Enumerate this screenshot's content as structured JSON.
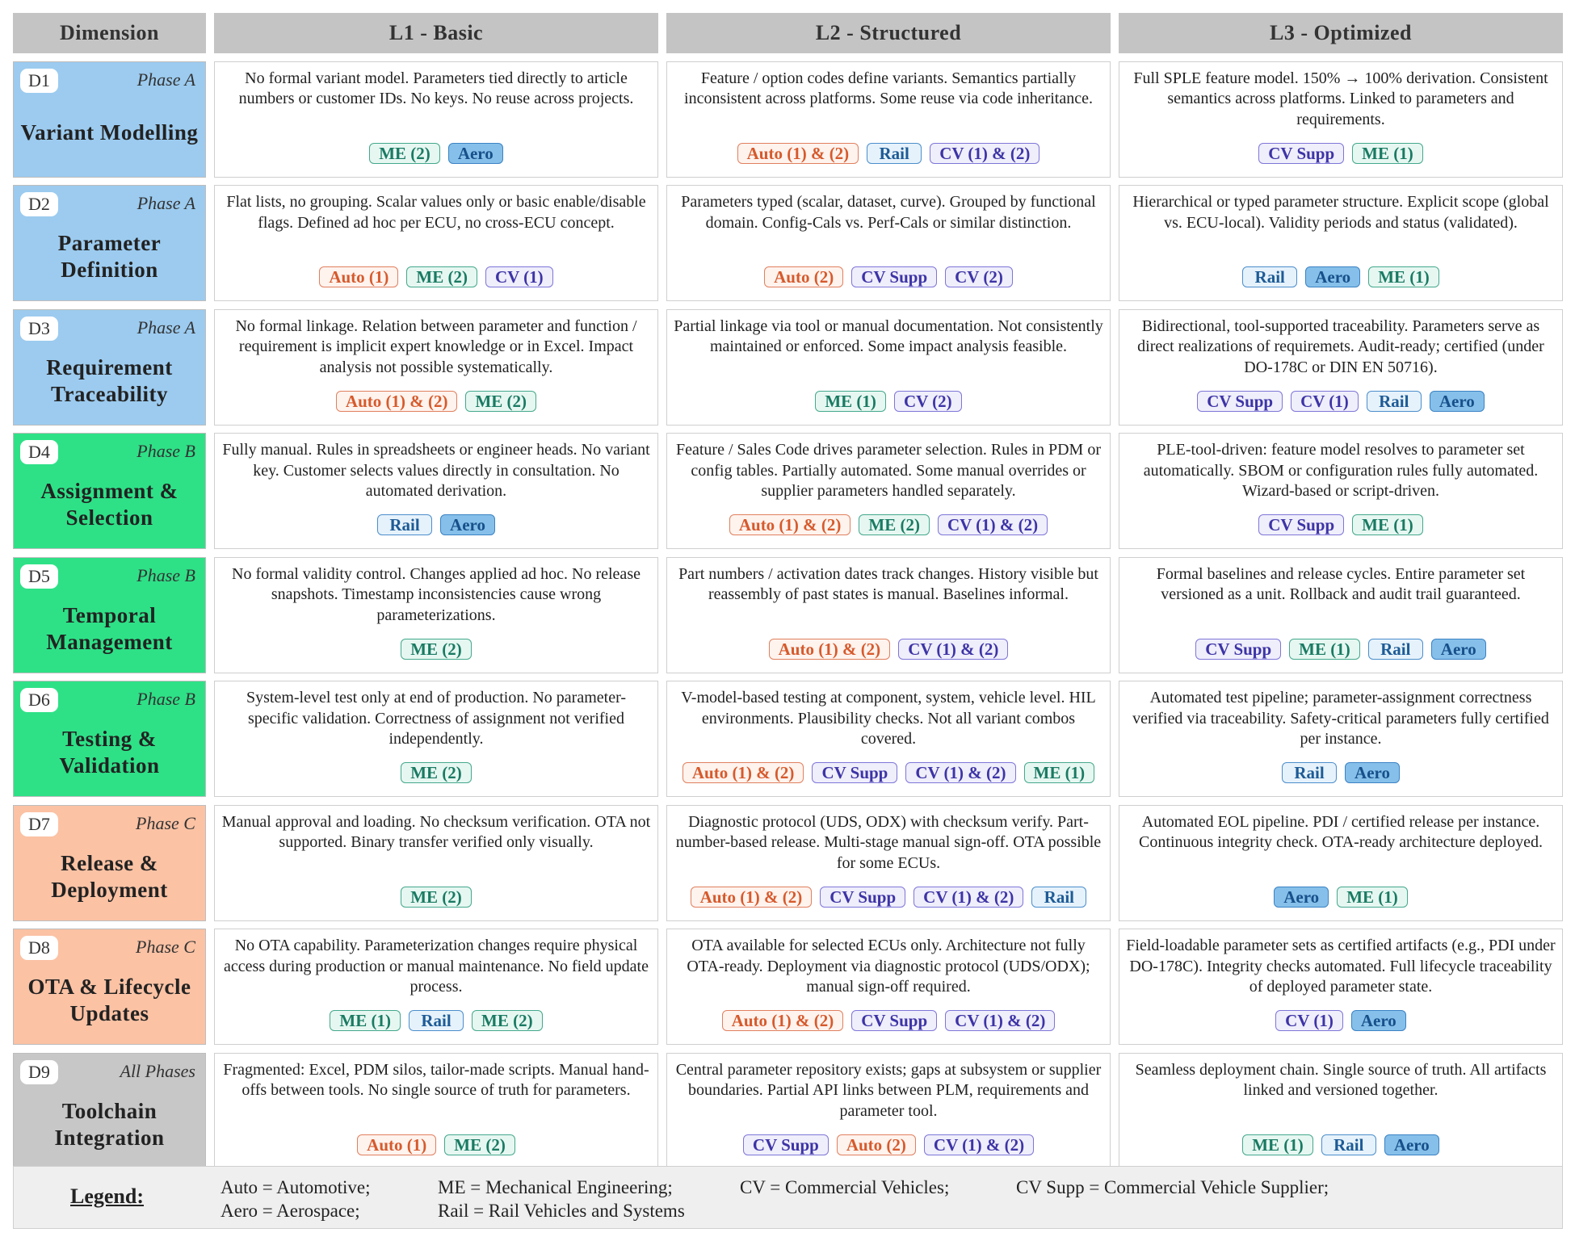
{
  "headers": [
    "Dimension",
    "L1 - Basic",
    "L2 - Structured",
    "L3 - Optimized"
  ],
  "rows": [
    {
      "id": "D1",
      "phase": "Phase A",
      "phase_class": "pa",
      "name": "Variant Modelling",
      "cells": [
        {
          "text": "No formal variant model. Parameters tied directly to article numbers or customer IDs. No keys. No reuse across projects.",
          "tags": [
            {
              "label": "ME (2)",
              "kind": "me"
            },
            {
              "label": "Aero",
              "kind": "aero"
            }
          ]
        },
        {
          "text": "Feature / option codes define variants. Semantics partially inconsistent across platforms. Some reuse via code inheritance.",
          "tags": [
            {
              "label": "Auto (1) & (2)",
              "kind": "auto"
            },
            {
              "label": "Rail",
              "kind": "rail"
            },
            {
              "label": "CV (1) & (2)",
              "kind": "cv"
            }
          ]
        },
        {
          "text": "Full SPLE feature model. 150% → 100% derivation. Consistent semantics across platforms. Linked to parameters and requirements.",
          "tags": [
            {
              "label": "CV Supp",
              "kind": "cvs"
            },
            {
              "label": "ME (1)",
              "kind": "me"
            }
          ]
        }
      ]
    },
    {
      "id": "D2",
      "phase": "Phase A",
      "phase_class": "pa",
      "name": "Parameter Definition",
      "cells": [
        {
          "text": "Flat lists, no grouping. Scalar values only or basic enable/disable flags. Defined ad hoc per ECU, no cross-ECU concept.",
          "tags": [
            {
              "label": "Auto (1)",
              "kind": "auto"
            },
            {
              "label": "ME (2)",
              "kind": "me"
            },
            {
              "label": "CV (1)",
              "kind": "cv"
            }
          ]
        },
        {
          "text": "Parameters typed (scalar, dataset, curve). Grouped by functional domain. Config-Cals vs. Perf-Cals or similar distinction.",
          "tags": [
            {
              "label": "Auto (2)",
              "kind": "auto"
            },
            {
              "label": "CV Supp",
              "kind": "cvs"
            },
            {
              "label": "CV (2)",
              "kind": "cv"
            }
          ]
        },
        {
          "text": "Hierarchical or typed parameter structure. Explicit scope (global vs. ECU-local). Validity periods and status (validated).",
          "tags": [
            {
              "label": "Rail",
              "kind": "rail"
            },
            {
              "label": "Aero",
              "kind": "aero"
            },
            {
              "label": "ME (1)",
              "kind": "me"
            }
          ]
        }
      ]
    },
    {
      "id": "D3",
      "phase": "Phase A",
      "phase_class": "pa",
      "name": "Requirement Traceability",
      "cells": [
        {
          "text": "No formal linkage. Relation between parameter and function / requirement is implicit expert knowledge or in Excel. Impact analysis not possible systematically.",
          "tags": [
            {
              "label": "Auto (1) & (2)",
              "kind": "auto"
            },
            {
              "label": "ME (2)",
              "kind": "me"
            }
          ]
        },
        {
          "text": "Partial linkage via tool or manual documentation. Not consistently maintained or enforced. Some impact analysis feasible.",
          "tags": [
            {
              "label": "ME (1)",
              "kind": "me"
            },
            {
              "label": "CV (2)",
              "kind": "cv"
            }
          ]
        },
        {
          "text": "Bidirectional, tool-supported traceability. Parameters serve as direct realizations of requiremets. Audit-ready; certified (under DO-178C or DIN EN 50716).",
          "tags": [
            {
              "label": "CV Supp",
              "kind": "cvs"
            },
            {
              "label": "CV (1)",
              "kind": "cv"
            },
            {
              "label": "Rail",
              "kind": "rail"
            },
            {
              "label": "Aero",
              "kind": "aero"
            }
          ]
        }
      ]
    },
    {
      "id": "D4",
      "phase": "Phase B",
      "phase_class": "pb",
      "name": "Assignment & Selection",
      "cells": [
        {
          "text": "Fully manual. Rules in spreadsheets or engineer heads. No variant key. Customer selects values directly in consultation. No automated derivation.",
          "tags": [
            {
              "label": "Rail",
              "kind": "rail"
            },
            {
              "label": "Aero",
              "kind": "aero"
            }
          ]
        },
        {
          "text": "Feature / Sales Code drives parameter selection. Rules in PDM or config tables. Partially automated. Some manual overrides or supplier parameters handled separately.",
          "tags": [
            {
              "label": "Auto (1) & (2)",
              "kind": "auto"
            },
            {
              "label": "ME (2)",
              "kind": "me"
            },
            {
              "label": "CV (1) & (2)",
              "kind": "cv"
            }
          ]
        },
        {
          "text": "PLE-tool-driven: feature model resolves to parameter set automatically. SBOM or configuration rules fully automated. Wizard-based or script-driven.",
          "tags": [
            {
              "label": "CV Supp",
              "kind": "cvs"
            },
            {
              "label": "ME (1)",
              "kind": "me"
            }
          ]
        }
      ]
    },
    {
      "id": "D5",
      "phase": "Phase B",
      "phase_class": "pb",
      "name": "Temporal Management",
      "cells": [
        {
          "text": "No formal validity control. Changes applied ad hoc. No release snapshots. Timestamp inconsistencies cause wrong parameterizations.",
          "tags": [
            {
              "label": "ME (2)",
              "kind": "me"
            }
          ]
        },
        {
          "text": "Part numbers / activation dates track changes. History visible but reassembly of past states is manual. Baselines informal.",
          "tags": [
            {
              "label": "Auto (1) & (2)",
              "kind": "auto"
            },
            {
              "label": "CV (1) & (2)",
              "kind": "cv"
            }
          ]
        },
        {
          "text": "Formal baselines and release cycles. Entire parameter set versioned as a unit. Rollback and audit trail guaranteed.",
          "tags": [
            {
              "label": "CV Supp",
              "kind": "cvs"
            },
            {
              "label": "ME (1)",
              "kind": "me"
            },
            {
              "label": "Rail",
              "kind": "rail"
            },
            {
              "label": "Aero",
              "kind": "aero"
            }
          ]
        }
      ]
    },
    {
      "id": "D6",
      "phase": "Phase B",
      "phase_class": "pb",
      "name": "Testing & Validation",
      "cells": [
        {
          "text": "System-level test only at end of production. No parameter-specific validation. Correctness of assignment not verified independently.",
          "tags": [
            {
              "label": "ME (2)",
              "kind": "me"
            }
          ]
        },
        {
          "text": "V-model-based testing at component, system, vehicle level. HIL environments. Plausibility checks. Not all variant combos covered.",
          "tags": [
            {
              "label": "Auto (1) & (2)",
              "kind": "auto"
            },
            {
              "label": "CV Supp",
              "kind": "cvs"
            },
            {
              "label": "CV (1) & (2)",
              "kind": "cv"
            },
            {
              "label": "ME (1)",
              "kind": "me"
            }
          ]
        },
        {
          "text": "Automated test pipeline; parameter-assignment correctness verified via traceability. Safety-critical parameters fully certified per instance.",
          "tags": [
            {
              "label": "Rail",
              "kind": "rail"
            },
            {
              "label": "Aero",
              "kind": "aero"
            }
          ]
        }
      ]
    },
    {
      "id": "D7",
      "phase": "Phase C",
      "phase_class": "pc",
      "name": "Release & Deployment",
      "cells": [
        {
          "text": "Manual approval and loading. No checksum verification. OTA not supported. Binary transfer verified only visually.",
          "tags": [
            {
              "label": "ME (2)",
              "kind": "me"
            }
          ]
        },
        {
          "text": "Diagnostic protocol (UDS, ODX) with checksum verify. Part-number-based release. Multi-stage manual sign-off. OTA possible for some ECUs.",
          "tags": [
            {
              "label": "Auto (1) & (2)",
              "kind": "auto"
            },
            {
              "label": "CV Supp",
              "kind": "cvs"
            },
            {
              "label": "CV (1) & (2)",
              "kind": "cv"
            },
            {
              "label": "Rail",
              "kind": "rail"
            }
          ]
        },
        {
          "text": "Automated EOL pipeline. PDI / certified release per instance. Continuous integrity check. OTA-ready architecture deployed.",
          "tags": [
            {
              "label": "Aero",
              "kind": "aero"
            },
            {
              "label": "ME (1)",
              "kind": "me"
            }
          ]
        }
      ]
    },
    {
      "id": "D8",
      "phase": "Phase C",
      "phase_class": "pc",
      "name": "OTA & Lifecycle Updates",
      "cells": [
        {
          "text": "No OTA capability. Parameterization changes require physical access during production or manual maintenance. No field update process.",
          "tags": [
            {
              "label": "ME (1)",
              "kind": "me"
            },
            {
              "label": "Rail",
              "kind": "rail"
            },
            {
              "label": "ME (2)",
              "kind": "me"
            }
          ]
        },
        {
          "text": "OTA available for selected ECUs only. Architecture not fully OTA-ready. Deployment via diagnostic protocol (UDS/ODX); manual sign-off required.",
          "tags": [
            {
              "label": "Auto (1) & (2)",
              "kind": "auto"
            },
            {
              "label": "CV Supp",
              "kind": "cvs"
            },
            {
              "label": "CV (1) & (2)",
              "kind": "cv"
            }
          ]
        },
        {
          "text": "Field-loadable parameter sets as certified artifacts (e.g., PDI under DO-178C). Integrity checks automated. Full lifecycle traceability of deployed parameter state.",
          "tags": [
            {
              "label": "CV (1)",
              "kind": "cv"
            },
            {
              "label": "Aero",
              "kind": "aero"
            }
          ]
        }
      ]
    },
    {
      "id": "D9",
      "phase": "All Phases",
      "phase_class": "pall",
      "name": "Toolchain Integration",
      "cells": [
        {
          "text": "Fragmented: Excel, PDM silos, tailor-made scripts. Manual hand-offs between tools. No single source of truth for parameters.",
          "tags": [
            {
              "label": "Auto (1)",
              "kind": "auto"
            },
            {
              "label": "ME (2)",
              "kind": "me"
            }
          ]
        },
        {
          "text": "Central parameter repository exists; gaps at subsystem or supplier boundaries. Partial API links between PLM, requirements and parameter tool.",
          "tags": [
            {
              "label": "CV Supp",
              "kind": "cvs"
            },
            {
              "label": "Auto (2)",
              "kind": "auto"
            },
            {
              "label": "CV (1) & (2)",
              "kind": "cv"
            }
          ]
        },
        {
          "text": "Seamless deployment chain. Single source of truth. All artifacts linked and versioned together.",
          "tags": [
            {
              "label": "ME (1)",
              "kind": "me"
            },
            {
              "label": "Rail",
              "kind": "rail"
            },
            {
              "label": "Aero",
              "kind": "aero"
            }
          ]
        }
      ]
    }
  ],
  "legend": {
    "title": "Legend:",
    "auto": "Auto = Automotive;",
    "aero": "Aero = Aerospace;",
    "me": "ME = Mechanical Engineering;",
    "rail": "Rail = Rail Vehicles and Systems",
    "cv": "CV = Commercial Vehicles;",
    "cvs": "CV Supp = Commercial Vehicle Supplier;"
  }
}
